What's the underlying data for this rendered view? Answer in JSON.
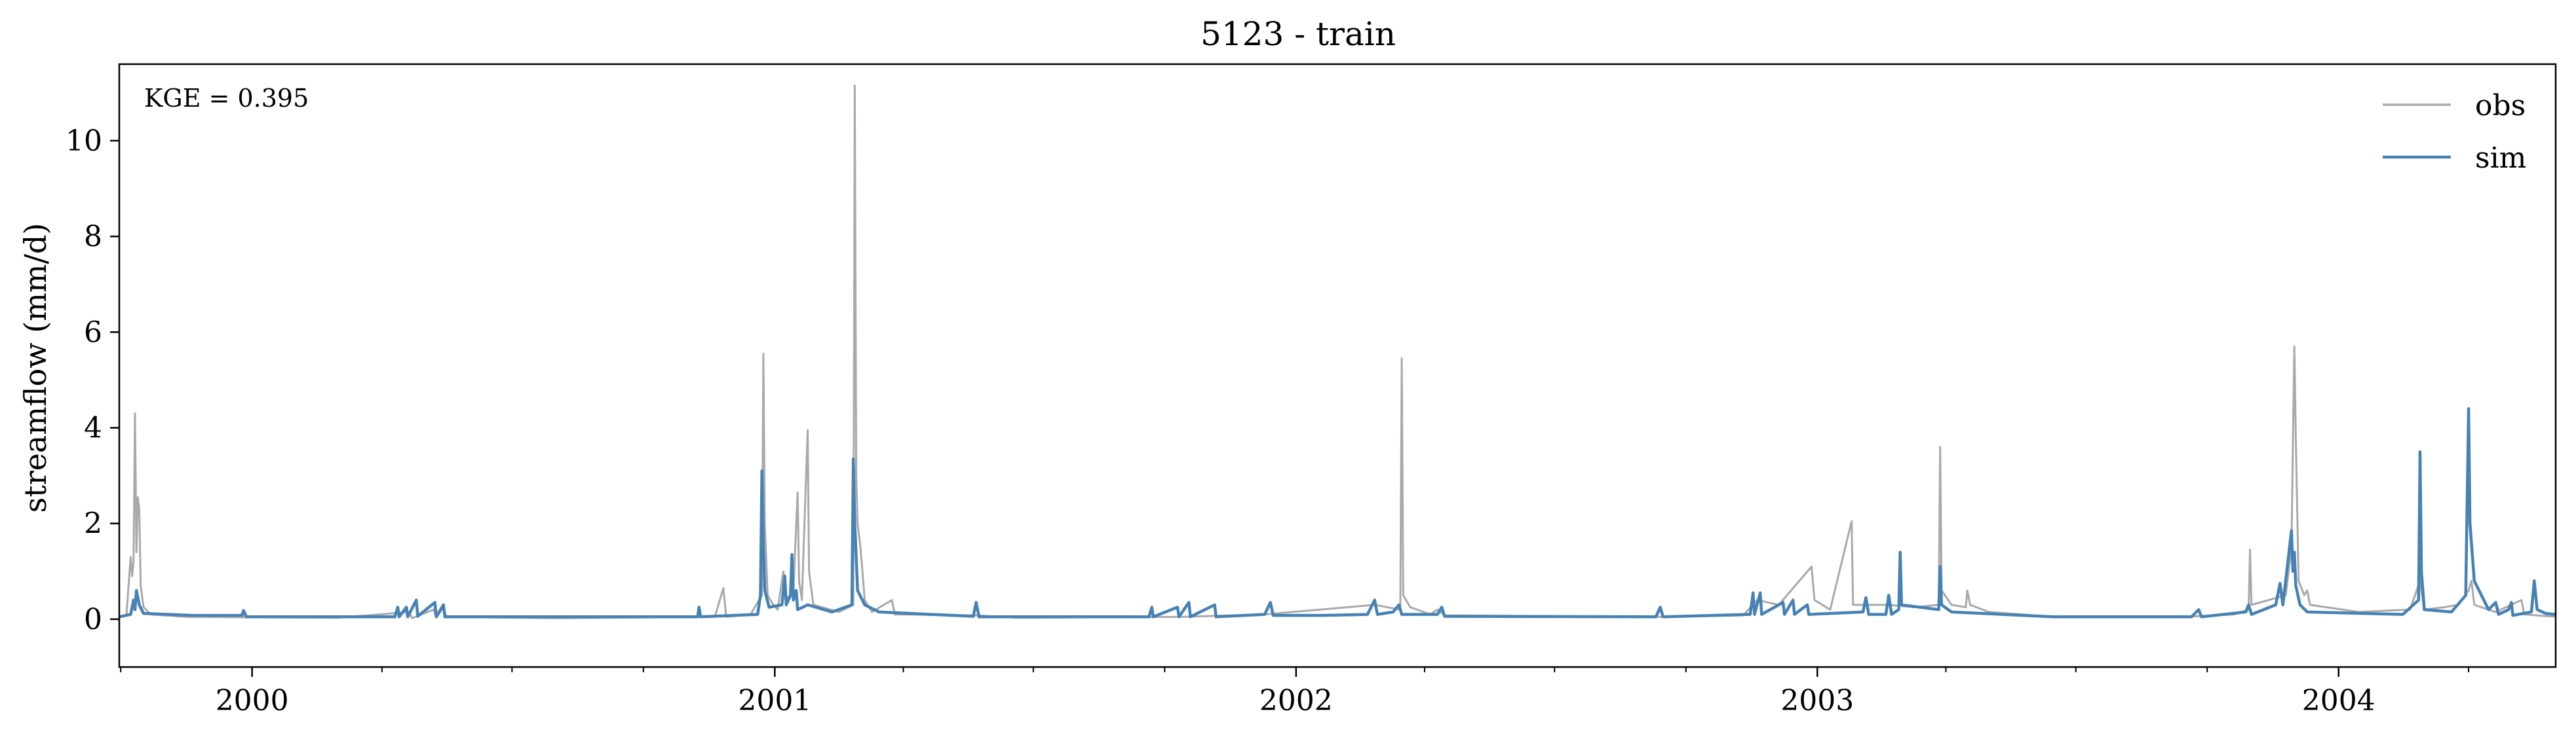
{
  "chart_data": {
    "type": "line",
    "title": "5123 - train",
    "ylabel": "streamflow (mm/d)",
    "xlabel": "",
    "annotation": "KGE = 0.395",
    "xlim": [
      "1999-09-30",
      "2004-06-01"
    ],
    "ylim": [
      -1,
      11.6
    ],
    "yticks": [
      0,
      2,
      4,
      6,
      8,
      10
    ],
    "xticks": [
      {
        "date": "2000-01-01",
        "label": "2000"
      },
      {
        "date": "2001-01-01",
        "label": "2001"
      },
      {
        "date": "2002-01-01",
        "label": "2002"
      },
      {
        "date": "2003-01-01",
        "label": "2003"
      },
      {
        "date": "2004-01-01",
        "label": "2004"
      }
    ],
    "legend_position": "upper-right",
    "grid": false,
    "series": [
      {
        "name": "obs",
        "color": "#a9a9a9",
        "points": [
          [
            "1999-09-30",
            0.05
          ],
          [
            "1999-10-05",
            0.08
          ],
          [
            "1999-10-08",
            1.3
          ],
          [
            "1999-10-09",
            0.9
          ],
          [
            "1999-10-10",
            1.2
          ],
          [
            "1999-10-11",
            4.3
          ],
          [
            "1999-10-12",
            1.4
          ],
          [
            "1999-10-13",
            2.55
          ],
          [
            "1999-10-14",
            2.3
          ],
          [
            "1999-10-15",
            0.7
          ],
          [
            "1999-10-17",
            0.25
          ],
          [
            "1999-10-22",
            0.1
          ],
          [
            "1999-11-15",
            0.05
          ],
          [
            "1999-12-31",
            0.04
          ],
          [
            "2000-03-01",
            0.03
          ],
          [
            "2000-04-20",
            0.15
          ],
          [
            "2000-04-22",
            0.02
          ],
          [
            "2000-05-07",
            0.2
          ],
          [
            "2000-05-09",
            0.04
          ],
          [
            "2000-05-14",
            0.25
          ],
          [
            "2000-05-16",
            0.05
          ],
          [
            "2000-08-01",
            0.02
          ],
          [
            "2000-11-20",
            0.05
          ],
          [
            "2000-11-26",
            0.65
          ],
          [
            "2000-11-28",
            0.05
          ],
          [
            "2000-12-15",
            0.1
          ],
          [
            "2000-12-23",
            0.5
          ],
          [
            "2000-12-24",
            5.55
          ],
          [
            "2000-12-25",
            2.0
          ],
          [
            "2000-12-27",
            0.5
          ],
          [
            "2000-12-31",
            0.3
          ],
          [
            "2001-01-03",
            0.2
          ],
          [
            "2001-01-07",
            1.0
          ],
          [
            "2001-01-09",
            0.4
          ],
          [
            "2001-01-14",
            0.6
          ],
          [
            "2001-01-17",
            2.65
          ],
          [
            "2001-01-18",
            0.8
          ],
          [
            "2001-01-20",
            0.4
          ],
          [
            "2001-01-24",
            3.95
          ],
          [
            "2001-01-25",
            1.0
          ],
          [
            "2001-01-28",
            0.3
          ],
          [
            "2001-02-15",
            0.15
          ],
          [
            "2001-02-25",
            0.3
          ],
          [
            "2001-02-26",
            11.15
          ],
          [
            "2001-02-27",
            3.0
          ],
          [
            "2001-02-28",
            2.0
          ],
          [
            "2001-03-02",
            1.5
          ],
          [
            "2001-03-05",
            0.4
          ],
          [
            "2001-03-10",
            0.15
          ],
          [
            "2001-03-24",
            0.4
          ],
          [
            "2001-03-26",
            0.1
          ],
          [
            "2001-05-22",
            0.08
          ],
          [
            "2001-06-20",
            0.03
          ],
          [
            "2001-10-15",
            0.05
          ],
          [
            "2001-12-10",
            0.1
          ],
          [
            "2002-02-25",
            0.3
          ],
          [
            "2002-03-15",
            0.2
          ],
          [
            "2002-03-16",
            5.45
          ],
          [
            "2002-03-17",
            0.5
          ],
          [
            "2002-03-22",
            0.25
          ],
          [
            "2002-04-05",
            0.1
          ],
          [
            "2002-04-10",
            0.2
          ],
          [
            "2002-04-15",
            0.08
          ],
          [
            "2002-09-15",
            0.05
          ],
          [
            "2002-11-10",
            0.08
          ],
          [
            "2002-11-20",
            0.4
          ],
          [
            "2002-12-05",
            0.3
          ],
          [
            "2002-12-28",
            1.1
          ],
          [
            "2002-12-30",
            0.4
          ],
          [
            "2003-01-10",
            0.2
          ],
          [
            "2003-01-25",
            2.05
          ],
          [
            "2003-01-26",
            0.3
          ],
          [
            "2003-02-20",
            0.3
          ],
          [
            "2003-03-10",
            0.25
          ],
          [
            "2003-03-27",
            0.3
          ],
          [
            "2003-03-28",
            3.6
          ],
          [
            "2003-03-29",
            0.6
          ],
          [
            "2003-04-05",
            0.3
          ],
          [
            "2003-04-15",
            0.25
          ],
          [
            "2003-04-16",
            0.6
          ],
          [
            "2003-04-18",
            0.3
          ],
          [
            "2003-05-01",
            0.15
          ],
          [
            "2003-06-15",
            0.05
          ],
          [
            "2003-09-15",
            0.05
          ],
          [
            "2003-10-20",
            0.1
          ],
          [
            "2003-10-30",
            0.2
          ],
          [
            "2003-10-31",
            1.45
          ],
          [
            "2003-11-01",
            0.3
          ],
          [
            "2003-11-25",
            0.5
          ],
          [
            "2003-11-29",
            1.5
          ],
          [
            "2003-11-30",
            3.7
          ],
          [
            "2003-12-01",
            5.7
          ],
          [
            "2003-12-02",
            3.8
          ],
          [
            "2003-12-04",
            0.8
          ],
          [
            "2003-12-08",
            0.5
          ],
          [
            "2003-12-10",
            0.6
          ],
          [
            "2003-12-12",
            0.3
          ],
          [
            "2004-01-15",
            0.15
          ],
          [
            "2004-02-20",
            0.2
          ],
          [
            "2004-02-27",
            0.8
          ],
          [
            "2004-03-01",
            0.2
          ],
          [
            "2004-03-15",
            0.25
          ],
          [
            "2004-03-25",
            0.3
          ],
          [
            "2004-04-01",
            0.6
          ],
          [
            "2004-04-03",
            0.8
          ],
          [
            "2004-04-05",
            0.3
          ],
          [
            "2004-04-20",
            0.15
          ],
          [
            "2004-05-08",
            0.4
          ],
          [
            "2004-05-10",
            0.1
          ],
          [
            "2004-06-01",
            0.05
          ]
        ]
      },
      {
        "name": "sim",
        "color": "#4682b4",
        "points": [
          [
            "1999-09-30",
            0.05
          ],
          [
            "1999-10-08",
            0.1
          ],
          [
            "1999-10-10",
            0.4
          ],
          [
            "1999-10-11",
            0.2
          ],
          [
            "1999-10-12",
            0.6
          ],
          [
            "1999-10-14",
            0.3
          ],
          [
            "1999-10-17",
            0.12
          ],
          [
            "1999-11-20",
            0.08
          ],
          [
            "1999-12-25",
            0.08
          ],
          [
            "1999-12-26",
            0.18
          ],
          [
            "1999-12-28",
            0.05
          ],
          [
            "2000-04-10",
            0.05
          ],
          [
            "2000-04-12",
            0.25
          ],
          [
            "2000-04-13",
            0.05
          ],
          [
            "2000-04-18",
            0.25
          ],
          [
            "2000-04-19",
            0.05
          ],
          [
            "2000-04-25",
            0.4
          ],
          [
            "2000-04-26",
            0.06
          ],
          [
            "2000-05-08",
            0.35
          ],
          [
            "2000-05-09",
            0.05
          ],
          [
            "2000-05-14",
            0.3
          ],
          [
            "2000-05-15",
            0.05
          ],
          [
            "2000-09-01",
            0.05
          ],
          [
            "2000-11-08",
            0.05
          ],
          [
            "2000-11-09",
            0.25
          ],
          [
            "2000-11-10",
            0.05
          ],
          [
            "2000-12-20",
            0.1
          ],
          [
            "2000-12-22",
            0.5
          ],
          [
            "2000-12-23",
            3.1
          ],
          [
            "2000-12-24",
            1.5
          ],
          [
            "2000-12-25",
            0.6
          ],
          [
            "2000-12-28",
            0.25
          ],
          [
            "2001-01-06",
            0.3
          ],
          [
            "2001-01-08",
            0.9
          ],
          [
            "2001-01-09",
            0.3
          ],
          [
            "2001-01-12",
            0.5
          ],
          [
            "2001-01-13",
            1.35
          ],
          [
            "2001-01-14",
            0.4
          ],
          [
            "2001-01-16",
            0.6
          ],
          [
            "2001-01-17",
            0.2
          ],
          [
            "2001-01-24",
            0.3
          ],
          [
            "2001-02-10",
            0.15
          ],
          [
            "2001-02-24",
            0.3
          ],
          [
            "2001-02-25",
            3.35
          ],
          [
            "2001-02-26",
            2.0
          ],
          [
            "2001-02-28",
            0.6
          ],
          [
            "2001-03-05",
            0.3
          ],
          [
            "2001-03-15",
            0.15
          ],
          [
            "2001-05-20",
            0.06
          ],
          [
            "2001-05-22",
            0.35
          ],
          [
            "2001-05-24",
            0.05
          ],
          [
            "2001-09-20",
            0.05
          ],
          [
            "2001-09-22",
            0.25
          ],
          [
            "2001-09-23",
            0.05
          ],
          [
            "2001-10-10",
            0.25
          ],
          [
            "2001-10-11",
            0.05
          ],
          [
            "2001-10-18",
            0.35
          ],
          [
            "2001-10-19",
            0.05
          ],
          [
            "2001-11-05",
            0.3
          ],
          [
            "2001-11-06",
            0.05
          ],
          [
            "2001-12-10",
            0.1
          ],
          [
            "2001-12-14",
            0.35
          ],
          [
            "2001-12-16",
            0.08
          ],
          [
            "2002-01-20",
            0.08
          ],
          [
            "2002-02-20",
            0.1
          ],
          [
            "2002-02-25",
            0.4
          ],
          [
            "2002-02-27",
            0.1
          ],
          [
            "2002-03-10",
            0.15
          ],
          [
            "2002-03-14",
            0.3
          ],
          [
            "2002-03-16",
            0.1
          ],
          [
            "2002-04-10",
            0.1
          ],
          [
            "2002-04-13",
            0.25
          ],
          [
            "2002-04-15",
            0.06
          ],
          [
            "2002-09-10",
            0.05
          ],
          [
            "2002-09-13",
            0.25
          ],
          [
            "2002-09-15",
            0.05
          ],
          [
            "2002-11-15",
            0.1
          ],
          [
            "2002-11-17",
            0.55
          ],
          [
            "2002-11-18",
            0.1
          ],
          [
            "2002-11-22",
            0.55
          ],
          [
            "2002-11-23",
            0.1
          ],
          [
            "2002-12-08",
            0.35
          ],
          [
            "2002-12-09",
            0.1
          ],
          [
            "2002-12-15",
            0.4
          ],
          [
            "2002-12-16",
            0.1
          ],
          [
            "2002-12-25",
            0.3
          ],
          [
            "2002-12-26",
            0.1
          ],
          [
            "2003-02-02",
            0.15
          ],
          [
            "2003-02-04",
            0.45
          ],
          [
            "2003-02-06",
            0.1
          ],
          [
            "2003-02-18",
            0.1
          ],
          [
            "2003-02-20",
            0.5
          ],
          [
            "2003-02-22",
            0.1
          ],
          [
            "2003-02-27",
            0.2
          ],
          [
            "2003-02-28",
            1.4
          ],
          [
            "2003-03-01",
            0.3
          ],
          [
            "2003-03-27",
            0.2
          ],
          [
            "2003-03-28",
            1.1
          ],
          [
            "2003-03-29",
            0.3
          ],
          [
            "2003-04-05",
            0.15
          ],
          [
            "2003-06-15",
            0.05
          ],
          [
            "2003-09-20",
            0.05
          ],
          [
            "2003-09-25",
            0.2
          ],
          [
            "2003-09-27",
            0.05
          ],
          [
            "2003-10-28",
            0.15
          ],
          [
            "2003-10-30",
            0.3
          ],
          [
            "2003-11-01",
            0.1
          ],
          [
            "2003-11-18",
            0.3
          ],
          [
            "2003-11-21",
            0.75
          ],
          [
            "2003-11-23",
            0.3
          ],
          [
            "2003-11-29",
            1.85
          ],
          [
            "2003-11-30",
            1.0
          ],
          [
            "2003-12-01",
            1.4
          ],
          [
            "2003-12-02",
            0.7
          ],
          [
            "2003-12-05",
            0.3
          ],
          [
            "2003-12-10",
            0.15
          ],
          [
            "2004-02-15",
            0.1
          ],
          [
            "2004-02-26",
            0.4
          ],
          [
            "2004-02-27",
            3.5
          ],
          [
            "2004-02-28",
            1.0
          ],
          [
            "2004-03-01",
            0.2
          ],
          [
            "2004-03-20",
            0.15
          ],
          [
            "2004-03-30",
            0.5
          ],
          [
            "2004-04-01",
            4.4
          ],
          [
            "2004-04-02",
            2.0
          ],
          [
            "2004-04-05",
            0.8
          ],
          [
            "2004-04-10",
            0.5
          ],
          [
            "2004-04-15",
            0.2
          ],
          [
            "2004-04-20",
            0.35
          ],
          [
            "2004-04-22",
            0.1
          ],
          [
            "2004-04-29",
            0.2
          ],
          [
            "2004-05-01",
            0.35
          ],
          [
            "2004-05-02",
            0.08
          ],
          [
            "2004-05-15",
            0.15
          ],
          [
            "2004-05-17",
            0.8
          ],
          [
            "2004-05-19",
            0.2
          ],
          [
            "2004-05-25",
            0.12
          ],
          [
            "2004-06-01",
            0.1
          ]
        ]
      }
    ]
  }
}
